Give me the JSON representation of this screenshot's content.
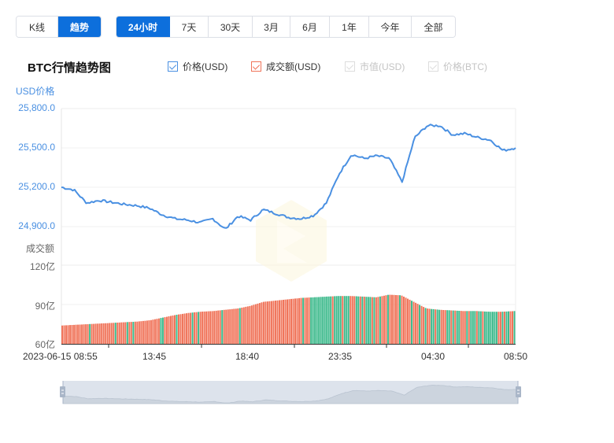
{
  "mode_tabs": [
    {
      "label": "K线",
      "active": false
    },
    {
      "label": "趋势",
      "active": true
    }
  ],
  "range_tabs": [
    {
      "label": "24小时",
      "active": true
    },
    {
      "label": "7天",
      "active": false
    },
    {
      "label": "30天",
      "active": false
    },
    {
      "label": "3月",
      "active": false
    },
    {
      "label": "6月",
      "active": false
    },
    {
      "label": "1年",
      "active": false
    },
    {
      "label": "今年",
      "active": false
    },
    {
      "label": "全部",
      "active": false
    }
  ],
  "chart_title": "BTC行情趋势图",
  "legend": [
    {
      "label": "价格(USD)",
      "enabled": true,
      "color": "#4a90e2"
    },
    {
      "label": "成交额(USD)",
      "enabled": true,
      "color": "#f0745a"
    },
    {
      "label": "市值(USD)",
      "enabled": false,
      "color": "#cccccc"
    },
    {
      "label": "价格(BTC)",
      "enabled": false,
      "color": "#cccccc"
    }
  ],
  "colors": {
    "accent": "#0d6fdc",
    "price_line": "#4a90e2",
    "volume_up": "#f0745a",
    "volume_down": "#3dba8c",
    "price_axis_text": "#4a90e2",
    "volume_axis_text": "#666666"
  },
  "chart_data": [
    {
      "type": "line",
      "title": "BTC行情趋势图",
      "ylabel": "USD价格",
      "yticks": [
        "25,800.0",
        "25,500.0",
        "25,200.0",
        "24,900.0"
      ],
      "ylim": [
        24800,
        25800
      ],
      "grid": true,
      "x": [
        "08:55",
        "09:40",
        "10:25",
        "11:10",
        "11:55",
        "12:40",
        "13:25",
        "14:10",
        "14:55",
        "15:40",
        "16:25",
        "17:10",
        "17:55",
        "18:40",
        "19:25",
        "20:10",
        "20:55",
        "21:40",
        "22:25",
        "23:10",
        "23:55",
        "00:40",
        "01:25",
        "02:10",
        "02:55",
        "03:10",
        "03:40",
        "04:00",
        "04:20",
        "04:40",
        "05:10",
        "05:50",
        "06:30",
        "07:10",
        "07:50",
        "08:20",
        "08:50"
      ],
      "series": [
        {
          "name": "价格(USD)",
          "values": [
            25200,
            25180,
            25080,
            25100,
            25085,
            25070,
            25060,
            25040,
            24990,
            24960,
            24950,
            24930,
            24960,
            24880,
            24980,
            24950,
            25030,
            25000,
            24970,
            24960,
            24985,
            25080,
            25300,
            25450,
            25420,
            25440,
            25420,
            25240,
            25580,
            25670,
            25670,
            25600,
            25610,
            25580,
            25560,
            25480,
            25500
          ]
        }
      ]
    },
    {
      "type": "bar",
      "ylabel": "成交额",
      "yticks": [
        "120亿",
        "90亿",
        "60亿"
      ],
      "ylim": [
        60,
        120
      ],
      "unit": "亿",
      "xticks": [
        "2023-06-15 08:55",
        "13:45",
        "18:40",
        "23:35",
        "04:30",
        "08:50"
      ],
      "series": [
        {
          "name": "成交额(USD)",
          "values": [
            74,
            74.5,
            75,
            75.5,
            76,
            76.5,
            77,
            78,
            80,
            82,
            83.5,
            84.5,
            85,
            86,
            87,
            89,
            92,
            93,
            94,
            95,
            95.5,
            96,
            96.5,
            96.5,
            96,
            95.5,
            97.5,
            97,
            92,
            87,
            86,
            85.5,
            85,
            85,
            84.5,
            84.5,
            85
          ]
        }
      ]
    }
  ],
  "navigator": {
    "start": "2023-06-15 08:55",
    "end": "08:50"
  }
}
